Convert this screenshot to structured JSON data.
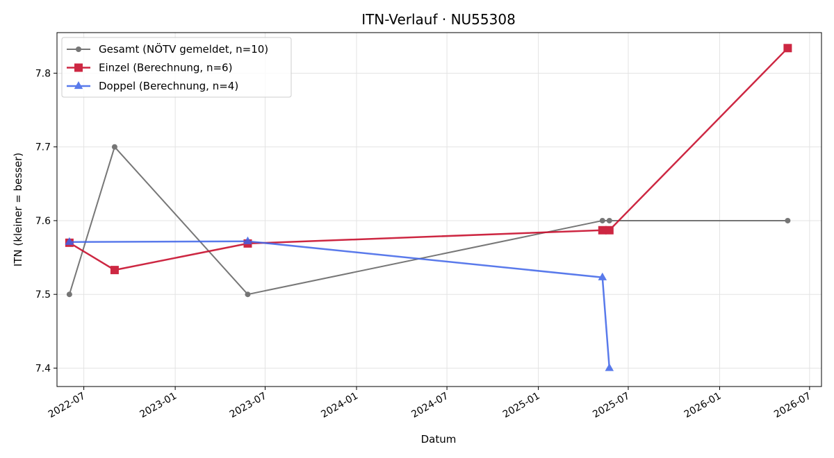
{
  "chart_data": {
    "type": "line",
    "title": "ITN-Verlauf · NU55308",
    "xlabel": "Datum",
    "ylabel": "ITN  (kleiner = besser)",
    "x_axis": "date",
    "xlim": [
      "2022-05-08",
      "2026-07-25"
    ],
    "ylim": [
      7.375,
      7.855
    ],
    "x_ticks": [
      "2022-07-01",
      "2023-01-01",
      "2023-07-01",
      "2024-01-01",
      "2024-07-01",
      "2025-01-01",
      "2025-07-01",
      "2026-01-01",
      "2026-07-01"
    ],
    "x_tick_labels": [
      "2022-07",
      "2023-01",
      "2023-07",
      "2024-01",
      "2024-07",
      "2025-01",
      "2025-07",
      "2026-01",
      "2026-07"
    ],
    "y_ticks": [
      7.4,
      7.5,
      7.6,
      7.7,
      7.8
    ],
    "y_tick_labels": [
      "7.4",
      "7.5",
      "7.6",
      "7.7",
      "7.8"
    ],
    "grid": true,
    "legend_position": "top-left",
    "series": [
      {
        "name": "Gesamt (NÖTV gemeldet, n=10)",
        "color": "#555555",
        "marker": "circle",
        "points": [
          {
            "x": "2022-06-02",
            "y": 7.5
          },
          {
            "x": "2022-09-01",
            "y": 7.7
          },
          {
            "x": "2023-05-27",
            "y": 7.5
          },
          {
            "x": "2025-05-10",
            "y": 7.6
          },
          {
            "x": "2025-05-24",
            "y": 7.6
          },
          {
            "x": "2026-05-18",
            "y": 7.6
          }
        ]
      },
      {
        "name": "Einzel (Berechnung, n=6)",
        "color": "#c8102e",
        "marker": "square",
        "points": [
          {
            "x": "2022-06-02",
            "y": 7.57
          },
          {
            "x": "2022-09-01",
            "y": 7.533
          },
          {
            "x": "2023-05-27",
            "y": 7.569
          },
          {
            "x": "2025-05-10",
            "y": 7.587
          },
          {
            "x": "2025-05-24",
            "y": 7.587
          },
          {
            "x": "2026-05-18",
            "y": 7.834
          }
        ]
      },
      {
        "name": "Doppel (Berechnung, n=4)",
        "color": "#3d63e8",
        "marker": "triangle",
        "points": [
          {
            "x": "2022-06-02",
            "y": 7.571
          },
          {
            "x": "2023-05-27",
            "y": 7.572
          },
          {
            "x": "2025-05-10",
            "y": 7.523
          },
          {
            "x": "2025-05-24",
            "y": 7.4
          }
        ]
      }
    ]
  }
}
